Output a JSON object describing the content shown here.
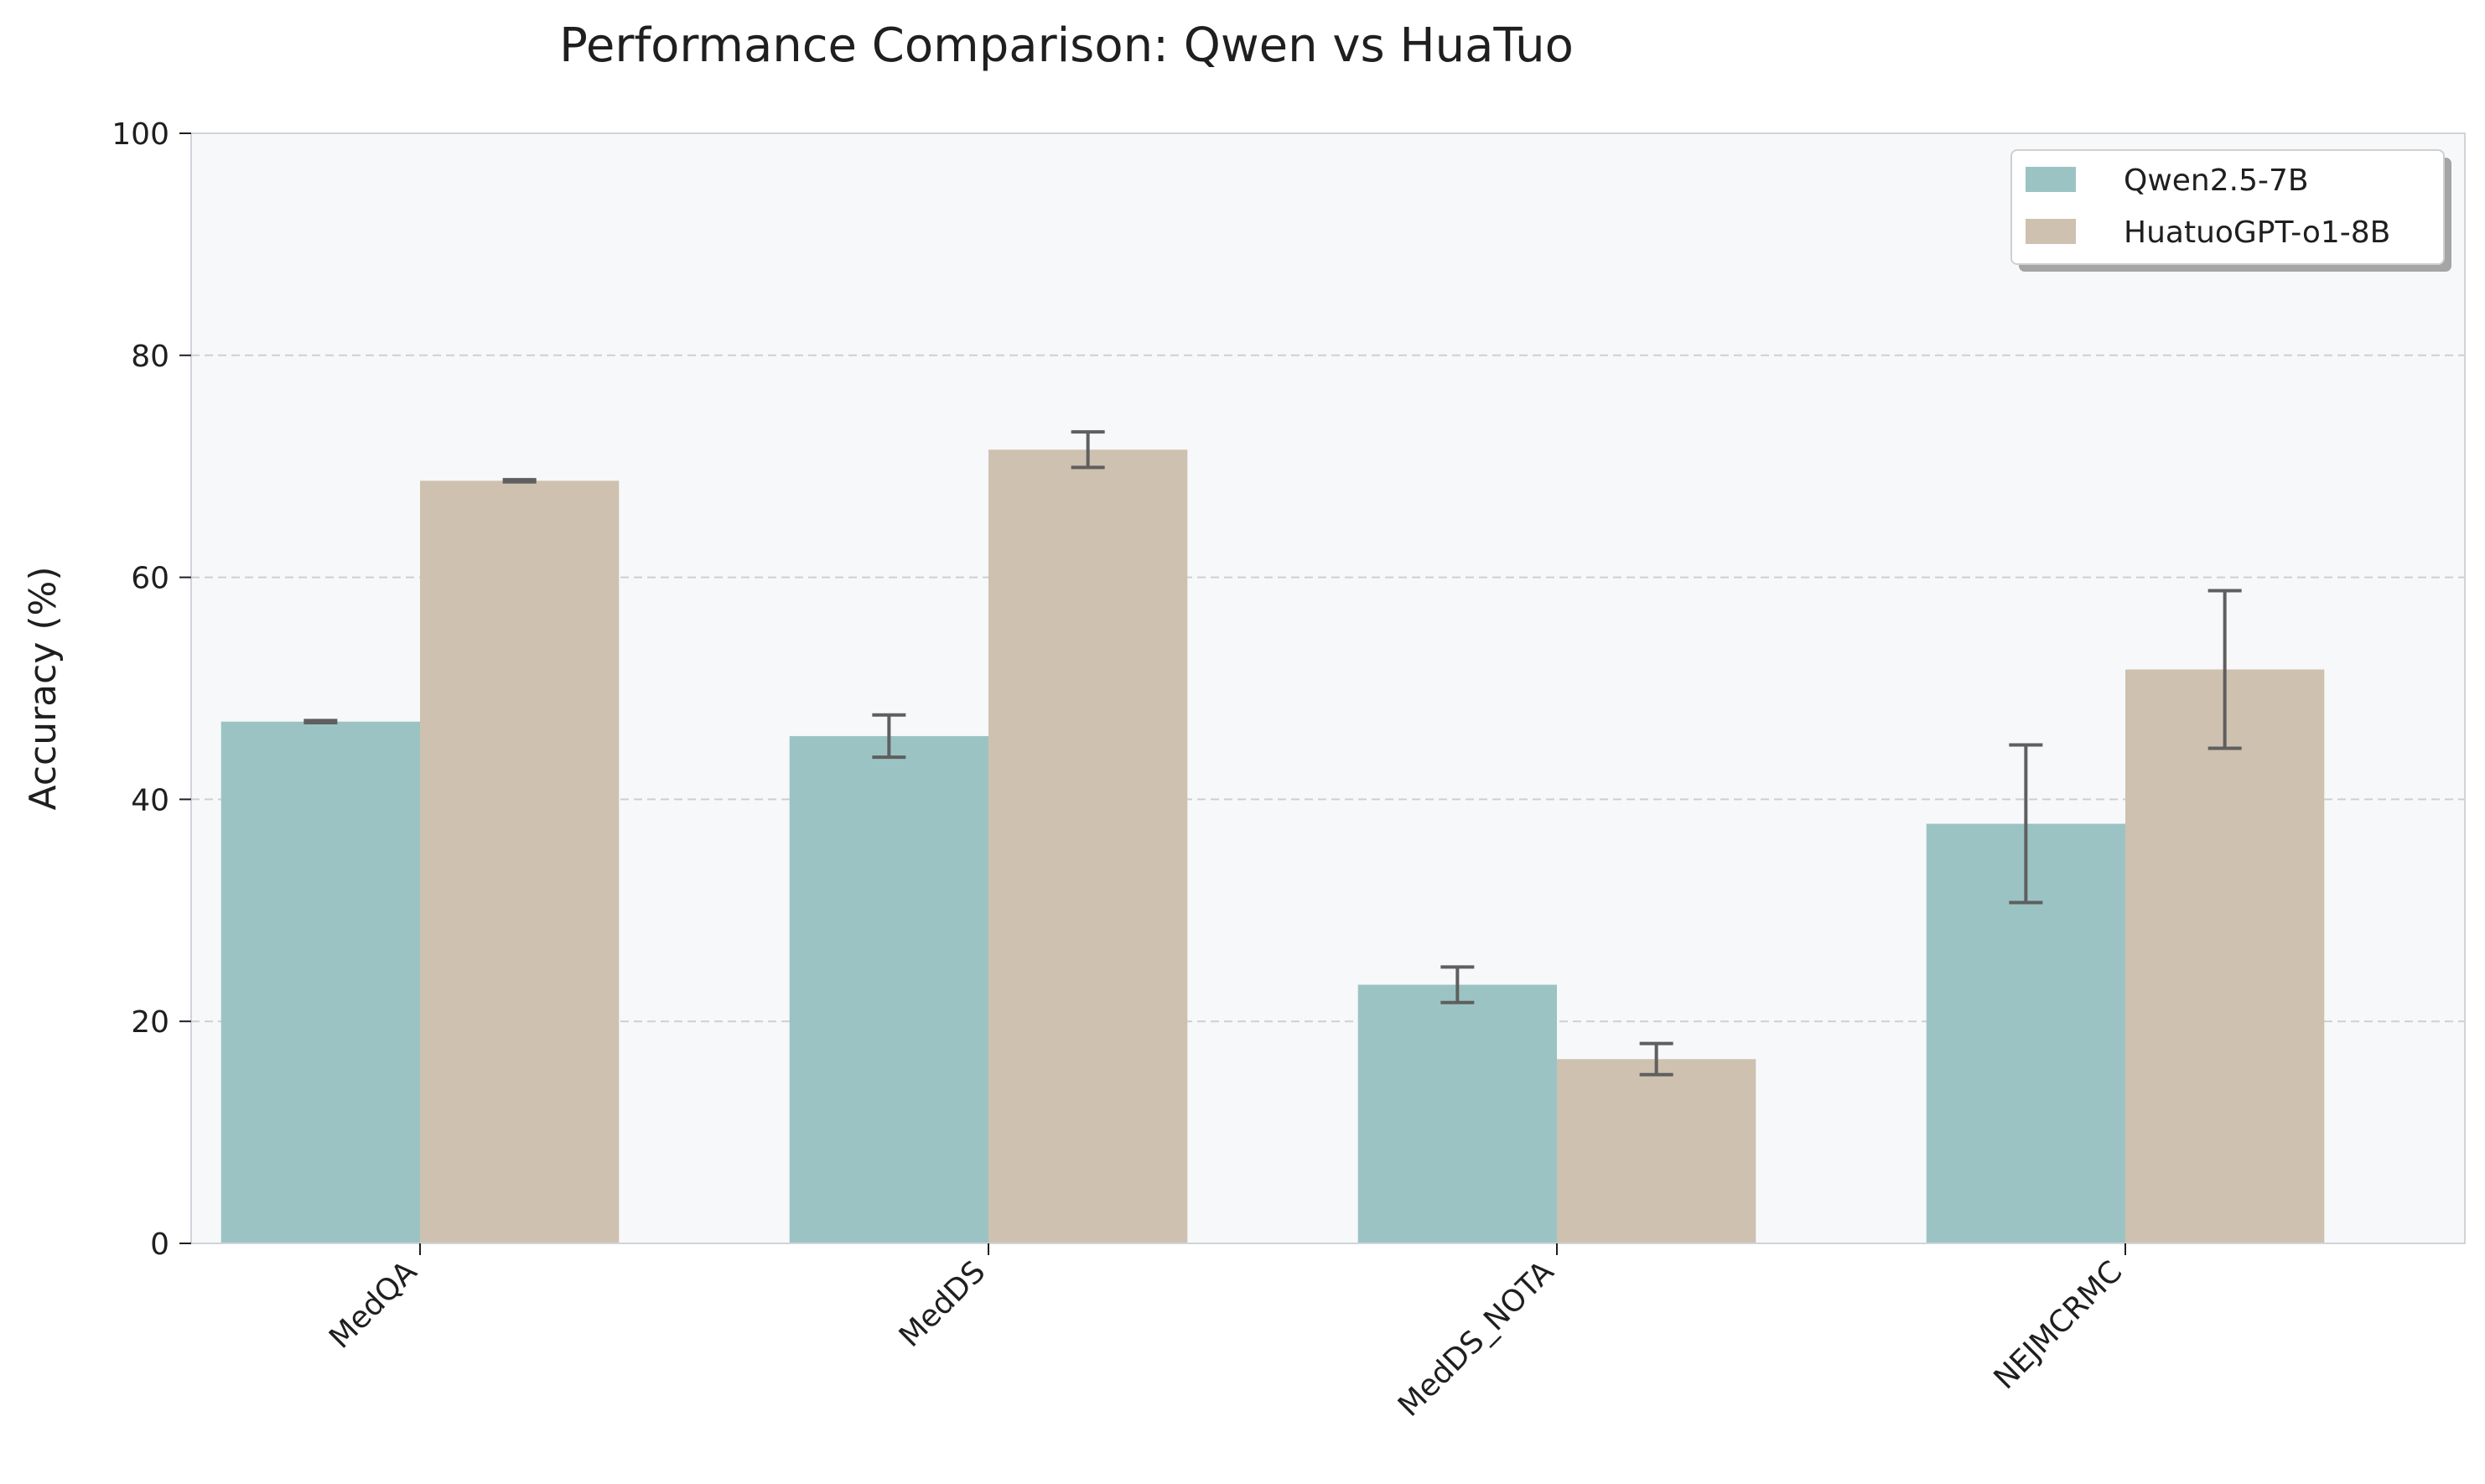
{
  "colors": {
    "background": "#ffffff",
    "plot_background": "#f7f8fa",
    "axes_border": "#d0d4da",
    "grid": "#cfcfcf",
    "qwen": "#9cc3c3",
    "huatuo": "#cec1b0",
    "error_bar": "#5f5f5f"
  },
  "chart_data": {
    "type": "bar",
    "title": "Performance Comparison: Qwen vs HuaTuo",
    "xlabel": "",
    "ylabel": "Accuracy (%)",
    "ylim": [
      0,
      100
    ],
    "yticks": [
      0,
      20,
      40,
      60,
      80,
      100
    ],
    "grid": "horizontal dashed",
    "legend_position": "top-right",
    "categories": [
      "MedQA",
      "MedDS",
      "MedDS_NOTA",
      "NEJMCRMC"
    ],
    "series": [
      {
        "name": "Qwen2.5-7B",
        "values": [
          47.0,
          45.7,
          23.3,
          37.8
        ],
        "error": [
          0.1,
          1.9,
          1.6,
          7.1
        ],
        "color": "#9cc3c3"
      },
      {
        "name": "HuatuoGPT-o1-8B",
        "values": [
          68.7,
          71.5,
          16.6,
          51.7
        ],
        "error": [
          0.1,
          1.6,
          1.4,
          7.1
        ],
        "color": "#cec1b0"
      }
    ]
  }
}
